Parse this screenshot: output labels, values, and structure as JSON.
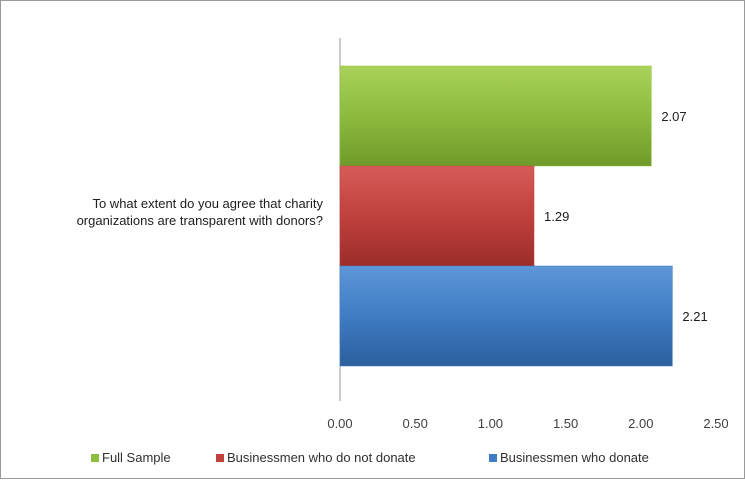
{
  "chart_data": {
    "type": "bar",
    "orientation": "horizontal",
    "categories": [
      "To what extent do you agree that charity organizations are transparent with donors?"
    ],
    "category_lines": [
      "To what extent do you agree that charity",
      "organizations are transparent with donors?"
    ],
    "series": [
      {
        "name": "Full Sample",
        "values": [
          2.07
        ],
        "label": "2.07",
        "color": "#8dbb3e"
      },
      {
        "name": "Businessmen who do not donate",
        "values": [
          1.29
        ],
        "label": "1.29",
        "color": "#c0413e"
      },
      {
        "name": "Businessmen who donate",
        "values": [
          2.21
        ],
        "label": "2.21",
        "color": "#3f7cc3"
      }
    ],
    "xlim": [
      0,
      2.5
    ],
    "xticks": [
      "0.00",
      "0.50",
      "1.00",
      "1.50",
      "2.00",
      "2.50"
    ],
    "grid": false,
    "legend_position": "bottom"
  }
}
